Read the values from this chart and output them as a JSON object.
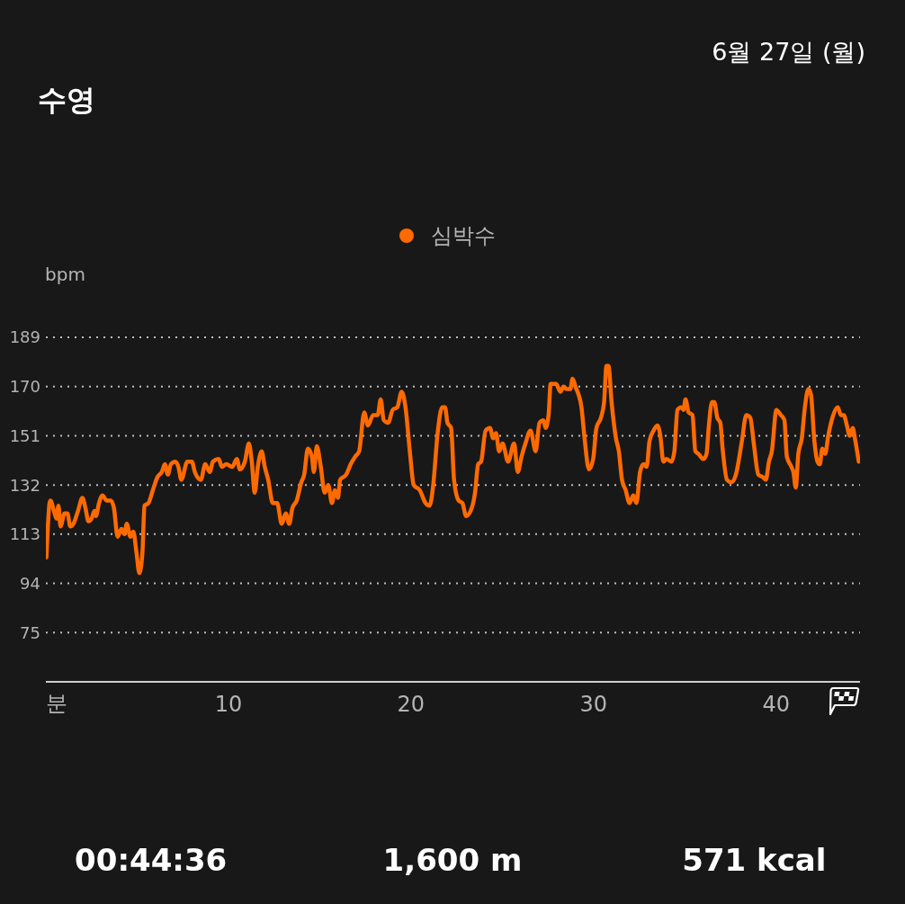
{
  "chart_data": {
    "type": "line",
    "title": "수영",
    "subtitle": "6월 27일 (월)",
    "xlabel": "분",
    "ylabel": "bpm",
    "x": [
      0.03,
      0.2,
      0.25,
      0.44,
      0.58,
      0.69,
      0.8,
      1.02,
      1.18,
      1.34,
      1.51,
      1.76,
      2.0,
      2.17,
      2.33,
      2.5,
      2.66,
      2.74,
      2.91,
      3.1,
      3.32,
      3.56,
      3.73,
      3.93,
      4.14,
      4.3,
      4.43,
      4.63,
      4.79,
      4.96,
      5.12,
      5.29,
      5.4,
      5.62,
      5.86,
      6.11,
      6.35,
      6.52,
      6.68,
      6.85,
      7.09,
      7.26,
      7.42,
      7.75,
      8.0,
      8.16,
      8.49,
      8.73,
      8.98,
      9.15,
      9.47,
      9.64,
      9.89,
      10.21,
      10.46,
      10.63,
      10.9,
      11.12,
      11.28,
      11.44,
      11.61,
      11.82,
      11.99,
      12.18,
      12.43,
      12.67,
      12.92,
      13.14,
      13.33,
      13.5,
      13.74,
      13.99,
      14.15,
      14.35,
      14.57,
      14.68,
      14.84,
      15.06,
      15.27,
      15.47,
      15.67,
      15.83,
      16.0,
      16.12,
      16.45,
      16.7,
      16.95,
      17.16,
      17.44,
      17.64,
      17.93,
      18.18,
      18.34,
      18.51,
      18.75,
      19.0,
      19.25,
      19.49,
      19.7,
      19.95,
      20.15,
      20.48,
      20.8,
      21.02,
      21.22,
      21.46,
      21.71,
      21.87,
      22.0,
      22.2,
      22.36,
      22.61,
      22.82,
      23.02,
      23.27,
      23.51,
      23.68,
      23.84,
      24.09,
      24.33,
      24.5,
      24.66,
      24.83,
      25.02,
      25.32,
      25.65,
      25.85,
      26.06,
      26.27,
      26.55,
      26.83,
      27.04,
      27.26,
      27.37,
      27.54,
      27.65,
      27.95,
      28.19,
      28.36,
      28.52,
      28.73,
      28.85,
      29.01,
      29.34,
      29.51,
      29.75,
      29.98,
      30.16,
      30.41,
      30.58,
      30.71,
      30.82,
      30.99,
      31.23,
      31.39,
      31.56,
      31.76,
      31.97,
      32.18,
      32.35,
      32.55,
      32.74,
      32.91,
      33.07,
      33.29,
      33.5,
      33.66,
      33.83,
      33.99,
      34.27,
      34.43,
      34.6,
      34.81,
      34.93,
      35.04,
      35.21,
      35.42,
      35.58,
      35.75,
      36.02,
      36.19,
      36.32,
      36.49,
      36.62,
      36.78,
      36.95,
      37.06,
      37.31,
      37.55,
      37.8,
      38.13,
      38.37,
      38.59,
      38.78,
      39.03,
      39.28,
      39.44,
      39.61,
      39.77,
      40.02,
      40.26,
      40.46,
      40.59,
      40.84,
      40.95,
      41.08,
      41.22,
      41.41,
      41.58,
      41.77,
      41.91,
      42.1,
      42.27,
      42.4,
      42.53,
      42.69,
      42.86,
      43.09,
      43.38,
      43.55,
      43.71,
      43.88,
      44.04,
      44.2,
      44.32,
      44.53
    ],
    "series": [
      {
        "name": "심박수",
        "color": "#ff6a00",
        "values": [
          104,
          125,
          126,
          122,
          119,
          124,
          116,
          121,
          121,
          116,
          117,
          122,
          127,
          123,
          118,
          119,
          122,
          120,
          125,
          128,
          126,
          126,
          123,
          112,
          115,
          113,
          117,
          112,
          114,
          106,
          98,
          106,
          124,
          125,
          130,
          135,
          137,
          140,
          136,
          140,
          141,
          139,
          134,
          141,
          141,
          137,
          134,
          140,
          137,
          141,
          142,
          139,
          140,
          139,
          142,
          138,
          141,
          148,
          141,
          129,
          139,
          145,
          139,
          134,
          125,
          125,
          117,
          121,
          117,
          123,
          126,
          133,
          136,
          146,
          143,
          137,
          147,
          139,
          129,
          132,
          125,
          130,
          127,
          134,
          136,
          140,
          143,
          145,
          160,
          155,
          159,
          159,
          165,
          157,
          156,
          161,
          162,
          168,
          162,
          144,
          132,
          130,
          125,
          124,
          132,
          152,
          162,
          162,
          156,
          154,
          134,
          126,
          125,
          120,
          122,
          129,
          140,
          141,
          153,
          154,
          150,
          152,
          145,
          148,
          141,
          148,
          137,
          143,
          148,
          153,
          145,
          156,
          157,
          154,
          159,
          171,
          171,
          168,
          170,
          169,
          169,
          173,
          170,
          162,
          150,
          138,
          142,
          154,
          158,
          164,
          178,
          178,
          164,
          150,
          145,
          134,
          130,
          125,
          128,
          125,
          137,
          140,
          139,
          149,
          153,
          155,
          151,
          141,
          142,
          141,
          145,
          161,
          162,
          161,
          165,
          160,
          159,
          145,
          144,
          142,
          144,
          155,
          164,
          164,
          158,
          156,
          147,
          134,
          133,
          136,
          149,
          159,
          158,
          148,
          136,
          135,
          134,
          141,
          145,
          161,
          159,
          157,
          143,
          139,
          137,
          131,
          144,
          150,
          162,
          169,
          167,
          149,
          141,
          140,
          146,
          144,
          151,
          158,
          162,
          159,
          159,
          155,
          151,
          154,
          150,
          141
        ]
      }
    ],
    "xlim": [
      0,
      44.6
    ],
    "xticks": [
      10,
      20,
      30,
      40
    ],
    "ylim": [
      56,
      189
    ],
    "yticks": [
      75,
      94,
      113,
      132,
      151,
      170,
      189
    ],
    "grid": "y",
    "legend": "top",
    "annotations": [
      "00:44:36",
      "1,600 m",
      "571 kcal"
    ]
  }
}
